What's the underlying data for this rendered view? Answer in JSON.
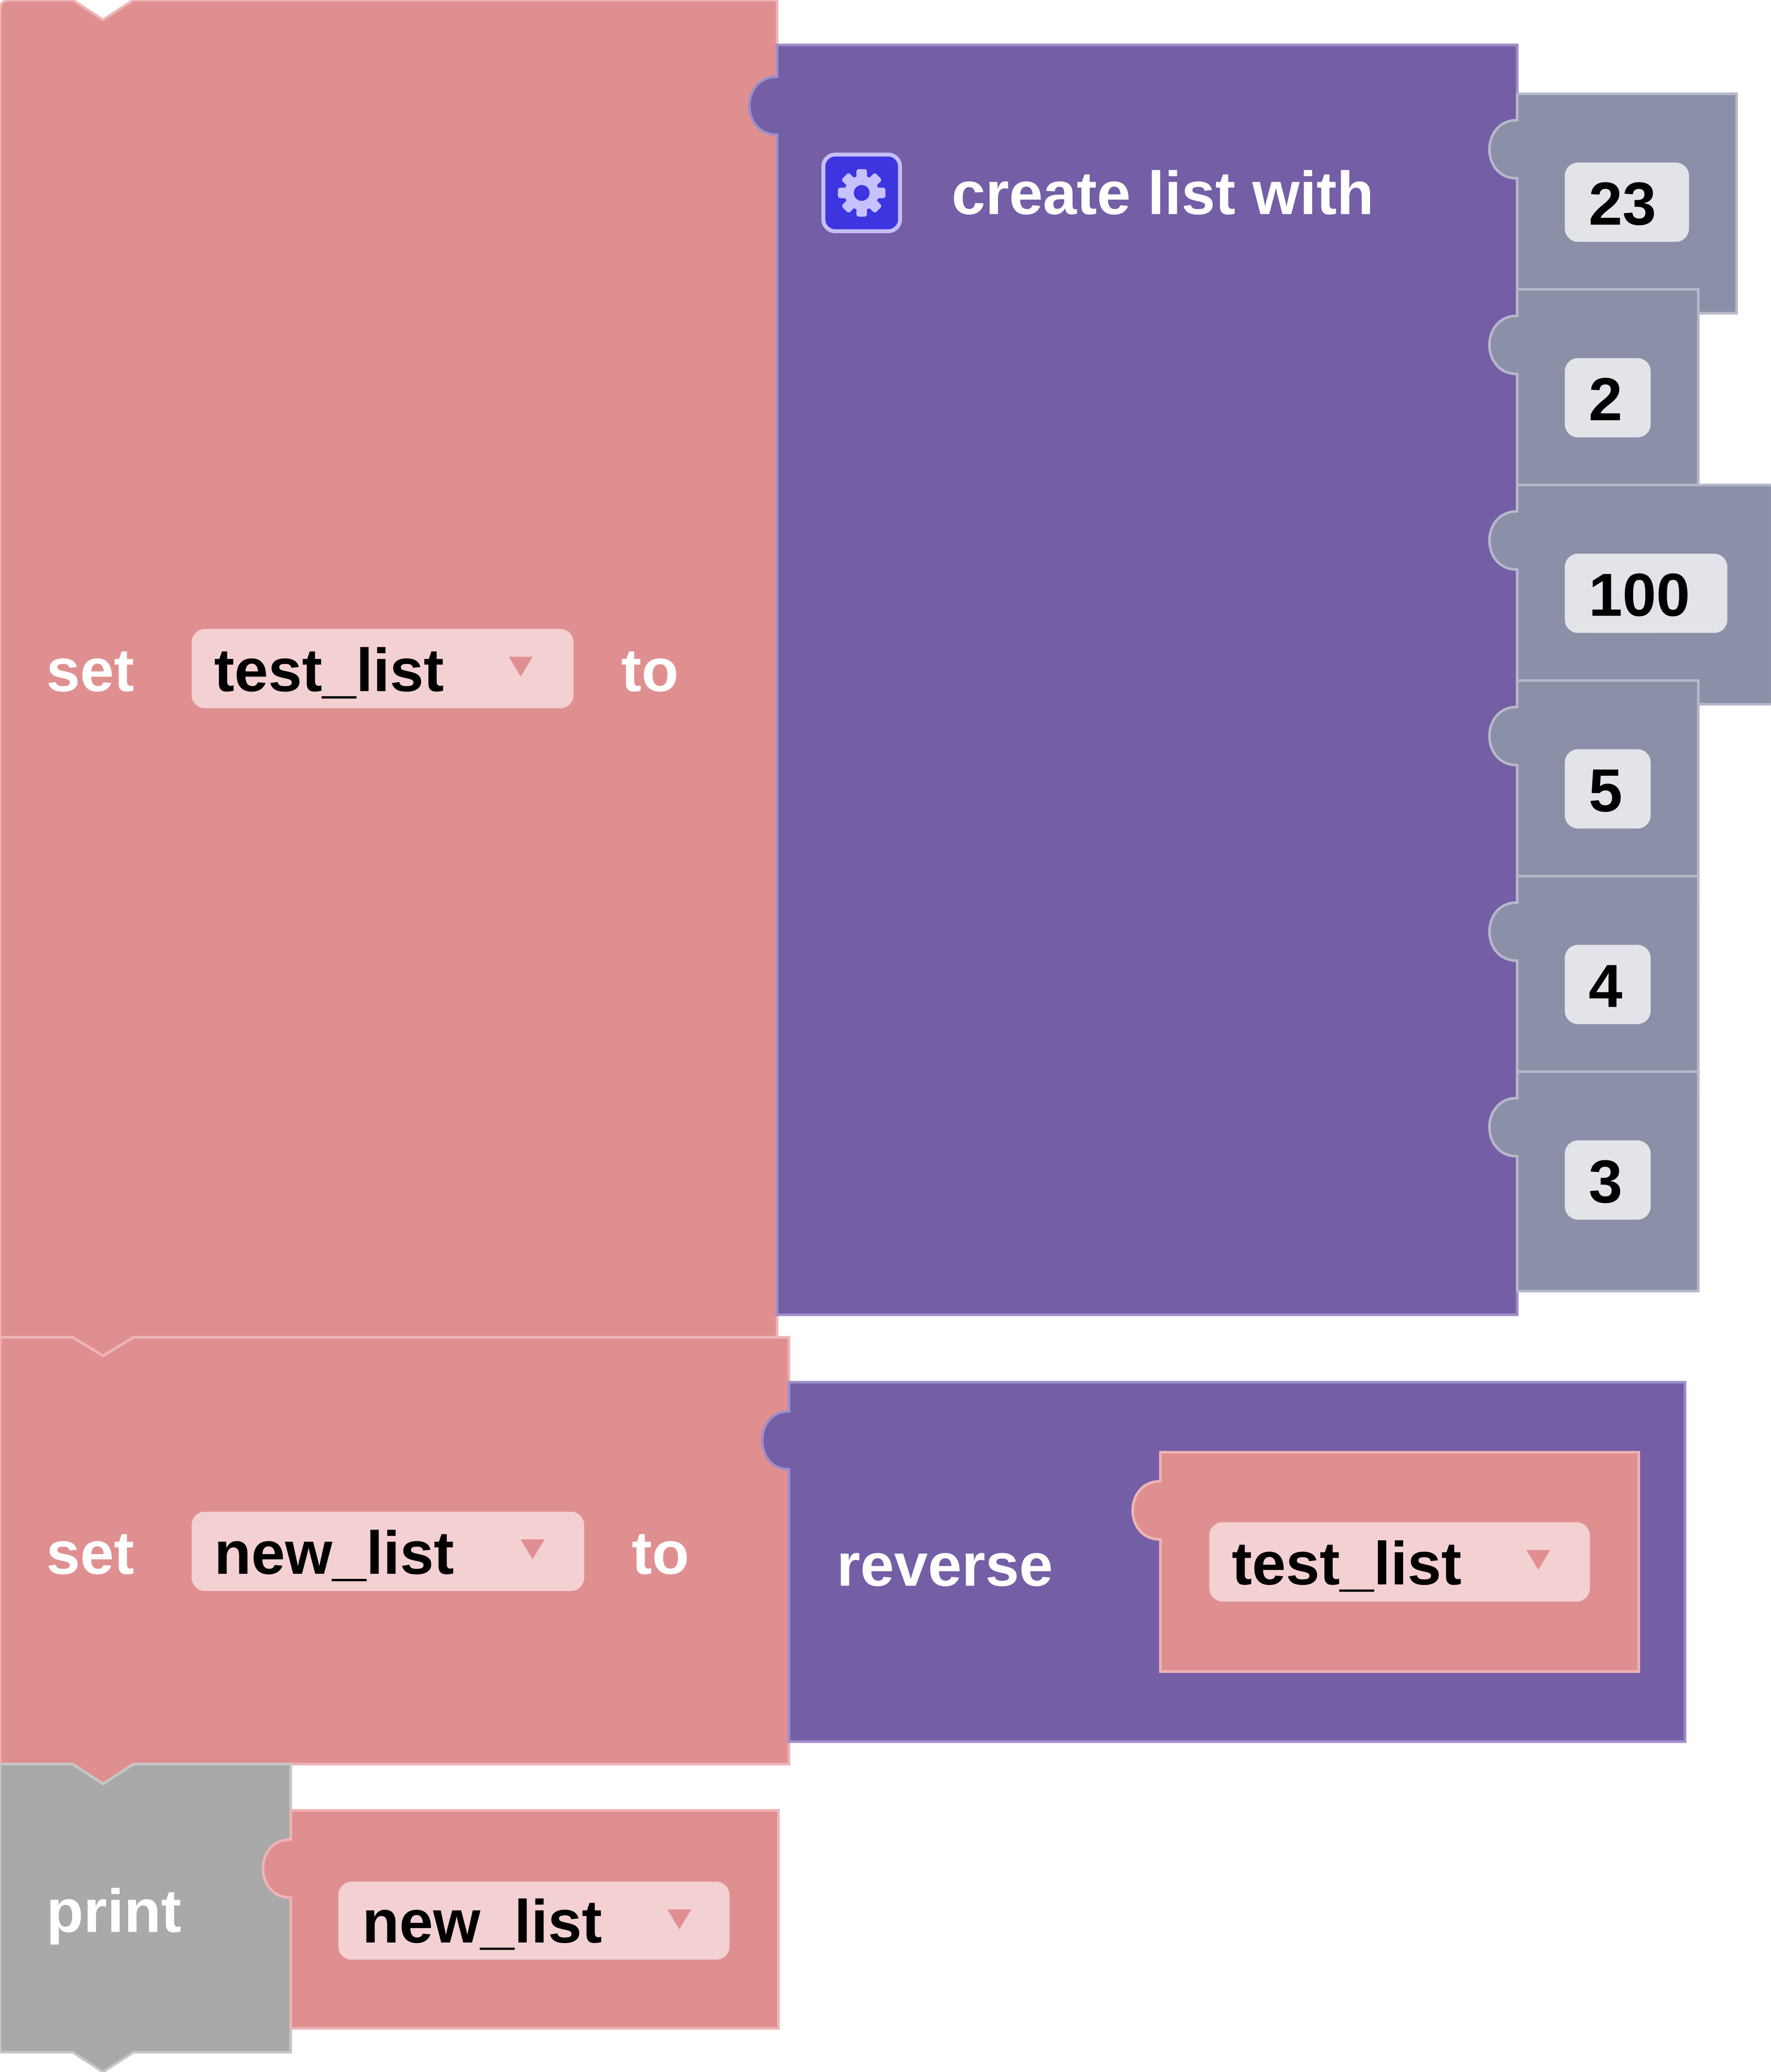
{
  "colors": {
    "variables_block": "#e08f90",
    "variables_stroke": "#eeb4b6",
    "lists_block": "#745ea6",
    "lists_stroke": "#9d8ec7",
    "number_block": "#8b8fa7",
    "number_stroke": "#b5b8c9",
    "print_block": "#a9a9a9",
    "print_stroke": "#c6c6c6",
    "mutator_fill": "#3d35e0"
  },
  "blocks": {
    "set_test_list": {
      "keyword": "set",
      "variable": "test_list",
      "to_label": "to"
    },
    "create_list": {
      "label": "create list with",
      "mutator_icon": "gear-icon",
      "items": [
        "23",
        "2",
        "100",
        "5",
        "4",
        "3"
      ]
    },
    "set_new_list": {
      "keyword": "set",
      "variable": "new_list",
      "to_label": "to"
    },
    "reverse": {
      "label": "reverse",
      "variable": "test_list"
    },
    "print": {
      "label": "print",
      "variable": "new_list"
    }
  }
}
